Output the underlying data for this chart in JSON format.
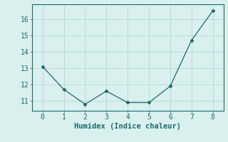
{
  "x": [
    0,
    1,
    2,
    3,
    4,
    5,
    6,
    7,
    8
  ],
  "y": [
    13.1,
    11.7,
    10.8,
    11.6,
    10.9,
    10.9,
    11.9,
    14.7,
    16.5
  ],
  "line_color": "#1a6b6b",
  "marker": "D",
  "marker_size": 2.5,
  "background_color": "#d9f0ee",
  "grid_color": "#b8dbd8",
  "xlabel": "Humidex (Indice chaleur)",
  "xlabel_fontsize": 7.5,
  "tick_fontsize": 7,
  "ylim": [
    10.4,
    16.9
  ],
  "xlim": [
    -0.5,
    8.5
  ],
  "yticks": [
    11,
    12,
    13,
    14,
    15,
    16
  ],
  "xticks": [
    0,
    1,
    2,
    3,
    4,
    5,
    6,
    7,
    8
  ]
}
